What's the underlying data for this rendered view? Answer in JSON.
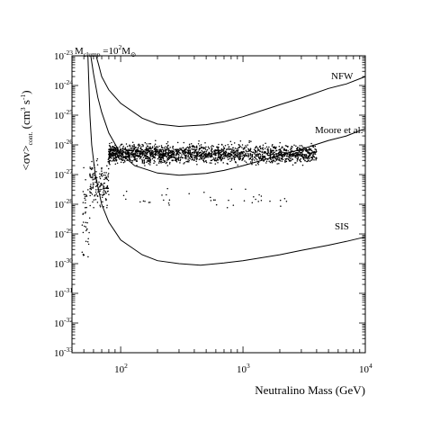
{
  "chart_data": {
    "type": "scatter",
    "title": "M_clump = 10^2 M_⊙",
    "title_parts": {
      "m": "M",
      "sub": "clump",
      "eq": " =10",
      "sup": "2",
      "m2": "M",
      "sun_sub": "⊙"
    },
    "xlabel": "Neutralino Mass (GeV)",
    "ylabel_parts": {
      "main": "<σv>",
      "sub": "cont.",
      "unit": " (cm",
      "sup1": "3",
      "mid": " s",
      "sup2": "-1",
      "end": ")"
    },
    "x_scale": "log",
    "y_scale": "log",
    "xlim": [
      40,
      10000
    ],
    "ylim": [
      1e-33,
      1e-23
    ],
    "x_ticks": [
      {
        "base": "10",
        "exp": "2",
        "value": 100
      },
      {
        "base": "10",
        "exp": "3",
        "value": 1000
      },
      {
        "base": "10",
        "exp": "4",
        "value": 10000
      }
    ],
    "y_ticks": [
      {
        "base": "10",
        "exp": "-23",
        "value": -23
      },
      {
        "base": "10",
        "exp": "-24",
        "value": -24
      },
      {
        "base": "10",
        "exp": "-25",
        "value": -25
      },
      {
        "base": "10",
        "exp": "-26",
        "value": -26
      },
      {
        "base": "10",
        "exp": "-27",
        "value": -27
      },
      {
        "base": "10",
        "exp": "-28",
        "value": -28
      },
      {
        "base": "10",
        "exp": "-29",
        "value": -29
      },
      {
        "base": "10",
        "exp": "-30",
        "value": -30
      },
      {
        "base": "10",
        "exp": "-31",
        "value": -31
      },
      {
        "base": "10",
        "exp": "-32",
        "value": -32
      },
      {
        "base": "10",
        "exp": "-33",
        "value": -33
      }
    ],
    "curves": [
      {
        "name": "NFW",
        "points": [
          [
            63,
            -23.0
          ],
          [
            66,
            -23.3
          ],
          [
            70,
            -23.7
          ],
          [
            80,
            -24.15
          ],
          [
            100,
            -24.6
          ],
          [
            150,
            -25.1
          ],
          [
            200,
            -25.3
          ],
          [
            300,
            -25.38
          ],
          [
            500,
            -25.32
          ],
          [
            700,
            -25.22
          ],
          [
            1000,
            -25.05
          ],
          [
            2000,
            -24.65
          ],
          [
            3000,
            -24.42
          ],
          [
            5000,
            -24.1
          ],
          [
            7000,
            -23.95
          ],
          [
            10000,
            -23.7
          ]
        ]
      },
      {
        "name": "Moore et al.",
        "points": [
          [
            57,
            -23.0
          ],
          [
            60,
            -23.6
          ],
          [
            65,
            -24.4
          ],
          [
            70,
            -24.9
          ],
          [
            80,
            -25.6
          ],
          [
            100,
            -26.3
          ],
          [
            130,
            -26.7
          ],
          [
            200,
            -26.95
          ],
          [
            300,
            -27.02
          ],
          [
            500,
            -26.96
          ],
          [
            700,
            -26.86
          ],
          [
            1000,
            -26.7
          ],
          [
            2000,
            -26.35
          ],
          [
            3000,
            -26.15
          ],
          [
            5000,
            -25.85
          ],
          [
            7000,
            -25.7
          ],
          [
            10000,
            -25.45
          ]
        ]
      },
      {
        "name": "SIS",
        "points": [
          [
            54,
            -23.0
          ],
          [
            56,
            -25.0
          ],
          [
            58,
            -26.0
          ],
          [
            62,
            -27.0
          ],
          [
            70,
            -28.0
          ],
          [
            80,
            -28.6
          ],
          [
            100,
            -29.2
          ],
          [
            150,
            -29.7
          ],
          [
            200,
            -29.9
          ],
          [
            300,
            -30.0
          ],
          [
            450,
            -30.05
          ],
          [
            700,
            -29.98
          ],
          [
            1000,
            -29.9
          ],
          [
            2000,
            -29.7
          ],
          [
            3000,
            -29.55
          ],
          [
            5000,
            -29.38
          ],
          [
            7000,
            -29.25
          ],
          [
            10000,
            -29.1
          ]
        ]
      }
    ],
    "scatter_clusters": [
      {
        "x_range": [
          48,
          56
        ],
        "y_center": -28.5,
        "y_spread": 3.0,
        "count": 40
      },
      {
        "x_range": [
          56,
          80
        ],
        "y_center": -27.3,
        "y_spread": 1.4,
        "count": 150
      },
      {
        "x_range": [
          80,
          4000
        ],
        "y_center": -26.3,
        "y_spread": 0.6,
        "count": 2000
      },
      {
        "x_range": [
          100,
          2500
        ],
        "y_center": -27.8,
        "y_spread": 0.6,
        "count": 40
      }
    ],
    "grid": false,
    "legend": "none",
    "colors": {
      "axes": "#000000",
      "curves": "#000000",
      "points": "#000000"
    }
  }
}
